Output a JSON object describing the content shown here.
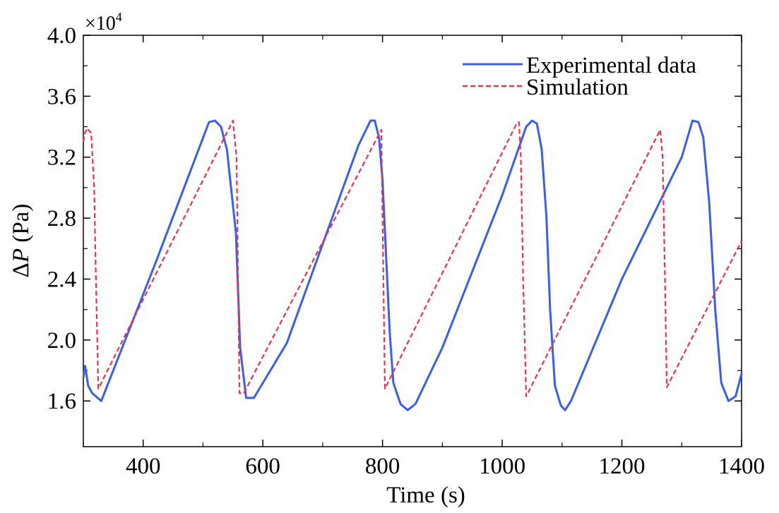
{
  "chart_data": {
    "type": "line",
    "xlabel": "Time (s)",
    "ylabel_delta": "Δ",
    "ylabel_var": "P",
    "ylabel_unit": " (Pa)",
    "y_multiplier_base": "×10",
    "y_multiplier_exp": "4",
    "xlim": [
      300,
      1400
    ],
    "ylim": [
      1.3,
      4.0
    ],
    "x_ticks": [
      400,
      600,
      800,
      1000,
      1200,
      1400
    ],
    "x_tick_labels": [
      "400",
      "600",
      "800",
      "1000",
      "1200",
      "1400"
    ],
    "y_ticks": [
      1.6,
      2.0,
      2.4,
      2.8,
      3.2,
      3.6,
      4.0
    ],
    "y_tick_labels": [
      "1.6",
      "2.0",
      "2.4",
      "2.8",
      "3.2",
      "3.6",
      "4.0"
    ],
    "grid": false,
    "legend_position": "top-right",
    "series": [
      {
        "name": "Experimental data",
        "color": "#3a5ee8",
        "dash": "solid",
        "x": [
          300,
          303,
          308,
          315,
          330,
          420,
          510,
          520,
          530,
          540,
          555,
          562,
          572,
          585,
          640,
          760,
          780,
          787,
          794,
          800,
          806,
          812,
          818,
          830,
          842,
          855,
          900,
          1000,
          1040,
          1050,
          1058,
          1066,
          1074,
          1080,
          1088,
          1098,
          1105,
          1115,
          1200,
          1300,
          1318,
          1328,
          1336,
          1346,
          1356,
          1366,
          1378,
          1390,
          1400
        ],
        "y": [
          1.75,
          1.83,
          1.7,
          1.65,
          1.6,
          2.5,
          3.43,
          3.44,
          3.4,
          3.25,
          2.7,
          1.95,
          1.62,
          1.62,
          1.98,
          3.28,
          3.44,
          3.44,
          3.33,
          3.05,
          2.55,
          2.05,
          1.72,
          1.58,
          1.54,
          1.58,
          1.95,
          2.95,
          3.4,
          3.44,
          3.42,
          3.25,
          2.8,
          2.2,
          1.7,
          1.57,
          1.54,
          1.6,
          2.4,
          3.2,
          3.44,
          3.43,
          3.33,
          2.9,
          2.2,
          1.72,
          1.6,
          1.63,
          1.78
        ]
      },
      {
        "name": "Simulation",
        "color": "#e8334f",
        "dash": "dashed",
        "x": [
          300,
          303,
          306,
          313,
          318,
          321,
          325,
          550,
          556,
          561,
          568,
          798,
          804,
          1024,
          1028,
          1031,
          1035,
          1040,
          1264,
          1268,
          1272,
          1275,
          1400
        ],
        "y": [
          3.3,
          3.36,
          3.39,
          3.36,
          3.0,
          2.4,
          1.68,
          3.44,
          3.2,
          1.65,
          1.65,
          3.38,
          1.68,
          3.42,
          3.43,
          3.2,
          2.4,
          1.63,
          3.38,
          3.2,
          2.4,
          1.69,
          2.65
        ]
      }
    ]
  }
}
